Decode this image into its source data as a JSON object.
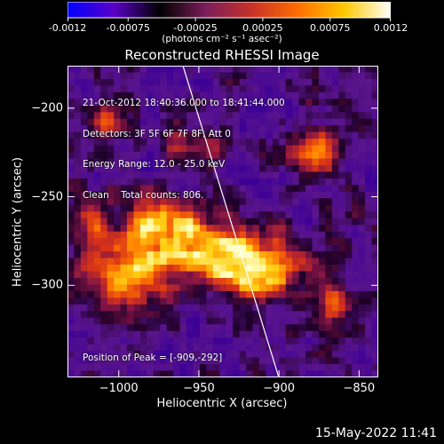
{
  "colorbar": {
    "tick_labels": [
      "-0.0012",
      "-0.00075",
      "-0.00025",
      "0.00025",
      "0.00075",
      "0.0012"
    ],
    "tick_values": [
      -0.0012,
      -0.00075,
      -0.00025,
      0.00025,
      0.00075,
      0.0012
    ],
    "range": [
      -0.0012,
      0.0012
    ],
    "units_label": "(photons cm⁻² s⁻¹ asec⁻²)",
    "colors": [
      "#0000ff",
      "#5a00c8",
      "#000000",
      "#7a1e5a",
      "#c83228",
      "#ff6e00",
      "#ffc800",
      "#ffffff"
    ]
  },
  "image": {
    "title": "Reconstructed RHESSI Image",
    "info_lines": [
      "21-Oct-2012 18:40:36.000 to 18:41:44.000",
      "Detectors: 3F 5F 6F 7F 8F, Att 0",
      "Energy Range: 12.0 - 25.0 keV",
      "Clean    Total counts: 806."
    ],
    "peak_label": "Position of Peak = [-909,-292]"
  },
  "axes": {
    "x_title": "Heliocentric X (arcsec)",
    "y_title": "Heliocentric Y (arcsec)",
    "x_range": [
      -1032,
      -838
    ],
    "y_range": [
      -352,
      -176
    ],
    "x_ticks": [
      {
        "value": -1000,
        "label": "−1000"
      },
      {
        "value": -950,
        "label": "−950"
      },
      {
        "value": -900,
        "label": "−900"
      },
      {
        "value": -850,
        "label": "−850"
      }
    ],
    "y_ticks": [
      {
        "value": -200,
        "label": "−200"
      },
      {
        "value": -250,
        "label": "−250"
      },
      {
        "value": -300,
        "label": "−300"
      }
    ]
  },
  "footer": {
    "timestamp": "15-May-2022 11:41"
  }
}
